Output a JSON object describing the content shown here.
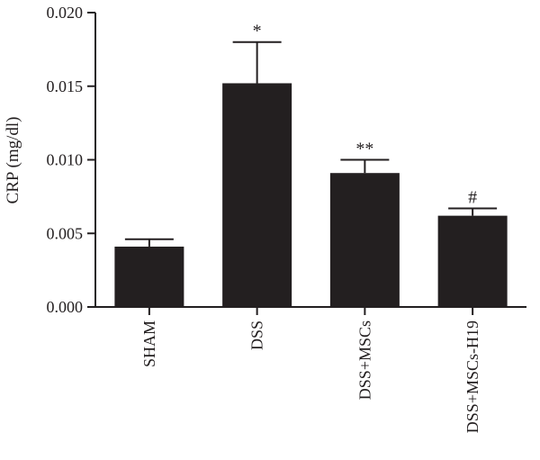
{
  "chart_data": {
    "type": "bar",
    "title": "",
    "xlabel": "",
    "ylabel": "CRP (mg/dl)",
    "ylim": [
      0,
      0.02
    ],
    "yticks": [
      0.0,
      0.005,
      0.01,
      0.015,
      0.02
    ],
    "ytick_labels": [
      "0.000",
      "0.005",
      "0.010",
      "0.015",
      "0.020"
    ],
    "categories": [
      "SHAM",
      "DSS",
      "DSS+MSCs",
      "DSS+MSCs-H19"
    ],
    "values": [
      0.0041,
      0.0152,
      0.0091,
      0.0062
    ],
    "errors": [
      0.0005,
      0.0028,
      0.0009,
      0.0005
    ],
    "annotations": [
      "",
      "*",
      "**",
      "#"
    ],
    "bar_color": "#231f20",
    "grid": false,
    "legend": "none"
  }
}
